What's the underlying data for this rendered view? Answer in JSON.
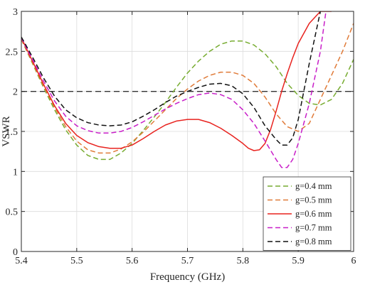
{
  "chart_data": {
    "type": "line",
    "title": "",
    "xlabel": "Frequency (GHz)",
    "ylabel": "VSWR",
    "xlim": [
      5.4,
      6.0
    ],
    "ylim": [
      0,
      3
    ],
    "xticks": [
      5.4,
      5.5,
      5.6,
      5.7,
      5.8,
      5.9,
      6.0
    ],
    "xtick_labels": [
      "5.4",
      "5.5",
      "5.6",
      "5.7",
      "5.8",
      "5.9",
      "6"
    ],
    "yticks": [
      0,
      0.5,
      1,
      1.5,
      2,
      2.5,
      3
    ],
    "ytick_labels": [
      "0",
      "0.5",
      "1",
      "1.5",
      "2",
      "2.5",
      "3"
    ],
    "grid": true,
    "legend_position": "bottom-right",
    "reference_line": {
      "y": 2,
      "color": "#333333",
      "style": "dashed"
    },
    "series": [
      {
        "name": "g=0.4 mm",
        "color": "#77ac30",
        "style": "dashed",
        "x": [
          5.4,
          5.42,
          5.44,
          5.46,
          5.48,
          5.5,
          5.52,
          5.54,
          5.56,
          5.58,
          5.6,
          5.62,
          5.64,
          5.66,
          5.68,
          5.7,
          5.72,
          5.74,
          5.76,
          5.78,
          5.8,
          5.82,
          5.84,
          5.86,
          5.88,
          5.9,
          5.92,
          5.94,
          5.96,
          5.98,
          6.0
        ],
        "y": [
          2.65,
          2.35,
          2.05,
          1.77,
          1.52,
          1.33,
          1.2,
          1.15,
          1.15,
          1.23,
          1.35,
          1.51,
          1.68,
          1.86,
          2.05,
          2.23,
          2.38,
          2.5,
          2.59,
          2.63,
          2.63,
          2.58,
          2.47,
          2.31,
          2.1,
          1.95,
          1.85,
          1.83,
          1.9,
          2.1,
          2.4
        ]
      },
      {
        "name": "g=0.5 mm",
        "color": "#e07b39",
        "style": "dashed",
        "x": [
          5.4,
          5.42,
          5.44,
          5.46,
          5.48,
          5.5,
          5.52,
          5.54,
          5.56,
          5.58,
          5.6,
          5.62,
          5.64,
          5.66,
          5.68,
          5.7,
          5.72,
          5.74,
          5.76,
          5.78,
          5.8,
          5.82,
          5.84,
          5.86,
          5.88,
          5.9,
          5.92,
          5.94,
          5.96,
          5.98,
          6.0
        ],
        "y": [
          2.65,
          2.36,
          2.07,
          1.8,
          1.56,
          1.38,
          1.27,
          1.23,
          1.23,
          1.28,
          1.37,
          1.49,
          1.63,
          1.77,
          1.91,
          2.03,
          2.13,
          2.2,
          2.24,
          2.24,
          2.2,
          2.1,
          1.93,
          1.72,
          1.56,
          1.5,
          1.6,
          1.9,
          2.2,
          2.5,
          2.85
        ]
      },
      {
        "name": "g=0.6 mm",
        "color": "#e8231f",
        "style": "solid",
        "x": [
          5.4,
          5.42,
          5.44,
          5.46,
          5.48,
          5.5,
          5.52,
          5.54,
          5.56,
          5.58,
          5.6,
          5.62,
          5.64,
          5.66,
          5.68,
          5.7,
          5.72,
          5.74,
          5.76,
          5.78,
          5.8,
          5.81,
          5.82,
          5.83,
          5.84,
          5.85,
          5.86,
          5.87,
          5.88,
          5.89,
          5.9,
          5.92,
          5.94,
          5.96
        ],
        "y": [
          2.67,
          2.38,
          2.09,
          1.82,
          1.6,
          1.45,
          1.36,
          1.31,
          1.29,
          1.29,
          1.33,
          1.41,
          1.5,
          1.58,
          1.63,
          1.65,
          1.65,
          1.61,
          1.54,
          1.45,
          1.35,
          1.29,
          1.26,
          1.27,
          1.35,
          1.52,
          1.75,
          2.0,
          2.22,
          2.42,
          2.6,
          2.85,
          3.0,
          3.0
        ]
      },
      {
        "name": "g=0.7 mm",
        "color": "#c81ec8",
        "style": "dashed",
        "x": [
          5.4,
          5.42,
          5.44,
          5.46,
          5.48,
          5.5,
          5.52,
          5.54,
          5.56,
          5.58,
          5.6,
          5.62,
          5.64,
          5.66,
          5.68,
          5.7,
          5.72,
          5.74,
          5.76,
          5.78,
          5.8,
          5.82,
          5.84,
          5.86,
          5.87,
          5.88,
          5.89,
          5.9,
          5.92,
          5.94,
          5.95
        ],
        "y": [
          2.67,
          2.4,
          2.13,
          1.88,
          1.69,
          1.57,
          1.51,
          1.48,
          1.48,
          1.5,
          1.55,
          1.62,
          1.7,
          1.78,
          1.85,
          1.91,
          1.96,
          1.98,
          1.96,
          1.9,
          1.77,
          1.6,
          1.38,
          1.15,
          1.05,
          1.05,
          1.15,
          1.35,
          1.85,
          2.5,
          3.0
        ]
      },
      {
        "name": "g=0.8 mm",
        "color": "#111111",
        "style": "dashed",
        "x": [
          5.4,
          5.42,
          5.44,
          5.46,
          5.48,
          5.5,
          5.52,
          5.54,
          5.56,
          5.58,
          5.6,
          5.62,
          5.64,
          5.66,
          5.68,
          5.7,
          5.72,
          5.74,
          5.76,
          5.78,
          5.8,
          5.82,
          5.84,
          5.86,
          5.87,
          5.88,
          5.89,
          5.9,
          5.92,
          5.94
        ],
        "y": [
          2.68,
          2.43,
          2.17,
          1.94,
          1.77,
          1.67,
          1.61,
          1.58,
          1.57,
          1.58,
          1.62,
          1.69,
          1.77,
          1.86,
          1.94,
          2.0,
          2.05,
          2.09,
          2.1,
          2.07,
          1.97,
          1.8,
          1.57,
          1.4,
          1.33,
          1.33,
          1.42,
          1.65,
          2.35,
          3.0
        ]
      }
    ]
  }
}
